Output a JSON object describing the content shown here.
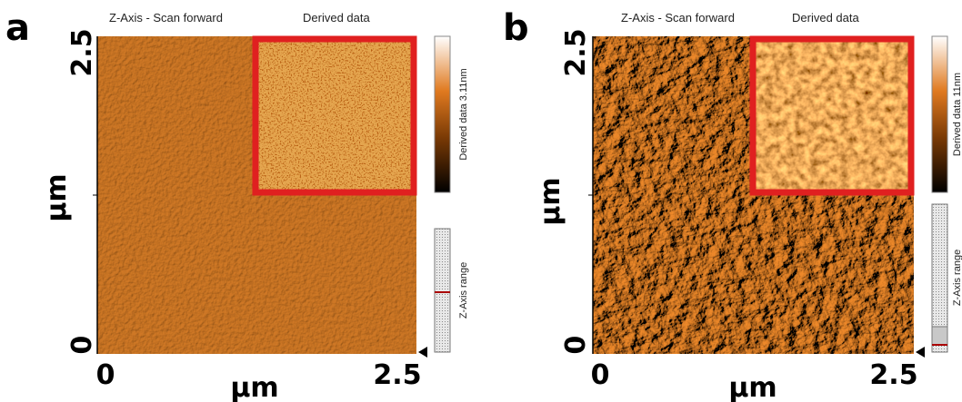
{
  "panels": [
    {
      "label": "a",
      "title": "Z-Axis - Scan forward",
      "subtitle": "Derived data",
      "y_ticks": [
        "2.5",
        "0"
      ],
      "y_label": "µm",
      "x_ticks": [
        "0",
        "2.5"
      ],
      "x_label": "µm",
      "colorbar_label": "Derived data 3.11nm",
      "range_label": "Z-Axis range"
    },
    {
      "label": "b",
      "title": "Z-Axis - Scan forward",
      "subtitle": "Derived data",
      "y_ticks": [
        "2.5",
        "0"
      ],
      "y_label": "µm",
      "x_ticks": [
        "0",
        "2.5"
      ],
      "x_label": "µm",
      "colorbar_label": "Derived data 11nm",
      "range_label": "Z-Axis range"
    }
  ]
}
